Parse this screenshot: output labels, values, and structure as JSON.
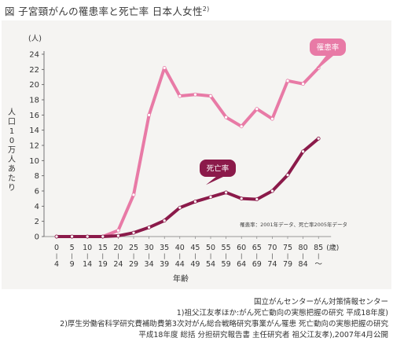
{
  "figure": {
    "title": "図 子宮頸がんの罹患率と死亡率 日本人女性",
    "title_ref": "2)"
  },
  "chart_data": {
    "type": "line",
    "categories": [
      [
        "0",
        "4"
      ],
      [
        "5",
        "9"
      ],
      [
        "10",
        "14"
      ],
      [
        "15",
        "19"
      ],
      [
        "20",
        "24"
      ],
      [
        "25",
        "29"
      ],
      [
        "30",
        "34"
      ],
      [
        "35",
        "39"
      ],
      [
        "40",
        "44"
      ],
      [
        "45",
        "49"
      ],
      [
        "50",
        "54"
      ],
      [
        "55",
        "59"
      ],
      [
        "60",
        "64"
      ],
      [
        "65",
        "69"
      ],
      [
        "70",
        "74"
      ],
      [
        "75",
        "79"
      ],
      [
        "80",
        "84"
      ],
      [
        "85",
        "〜"
      ]
    ],
    "x_unit": "(歳)",
    "xlabel": "年齢",
    "ylabel": "人口10万人あたり",
    "y_unit": "(人)",
    "ylim": [
      0,
      24
    ],
    "yticks": [
      0,
      2,
      4,
      6,
      8,
      10,
      12,
      14,
      16,
      18,
      20,
      22,
      24
    ],
    "series": [
      {
        "name": "罹患率",
        "color": "#e87aa6",
        "values": [
          0,
          0,
          0,
          0,
          0.8,
          5.5,
          16,
          22.2,
          18.5,
          18.7,
          18.5,
          15.7,
          14.5,
          16.8,
          15.5,
          20.5,
          20.1,
          22.2
        ]
      },
      {
        "name": "死亡率",
        "color": "#8b1a4a",
        "values": [
          0,
          0,
          0,
          0,
          0.1,
          0.5,
          1.2,
          2.1,
          3.8,
          4.6,
          5.2,
          5.8,
          5,
          4.9,
          6,
          8.1,
          11.2,
          12.9
        ]
      }
    ],
    "source_note": "罹患率：2001年データ、死亡率2005年データ"
  },
  "footnotes": {
    "source": "国立がんセンターがん対策情報センター",
    "ref1": "1)祖父江友孝ほか:がん死亡動向の実態把握の研究 平成18年度)",
    "ref2a": "2)厚生労働省科学研究費補助費第3次対がん総合戦略研究事業がん罹患 死亡動向の実態把握の研究",
    "ref2b": "平成18年度 総括 分担研究報告書 主任研究者 祖父江友孝),2007年4月公開"
  }
}
